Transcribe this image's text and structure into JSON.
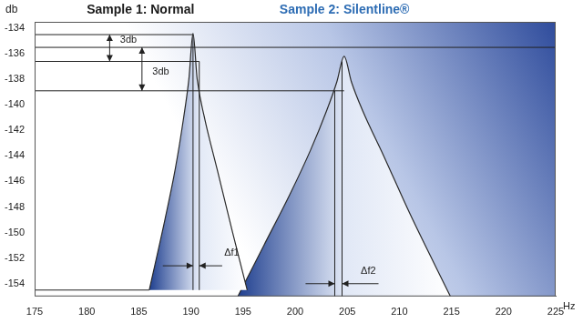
{
  "chart_data": {
    "type": "line",
    "x_label": "Hz",
    "y_label": "db",
    "series": [
      {
        "name": "Sample 1: Normal",
        "color": "#1f3f8f",
        "x": [
          186,
          187.5,
          188.5,
          189.3,
          189.8,
          190.2,
          190.6,
          191.3,
          192.5,
          194,
          195.4
        ],
        "values": [
          -154.5,
          -149,
          -145,
          -141,
          -138,
          -134.4,
          -138,
          -141,
          -145,
          -150,
          -154.5
        ]
      },
      {
        "name": "Sample 2: Silentline®",
        "color": "#1f3f8f",
        "x": [
          194.5,
          197,
          199.5,
          201.5,
          203,
          204,
          204.7,
          205.4,
          206.5,
          208.5,
          211,
          214.9
        ],
        "values": [
          -155,
          -151,
          -147,
          -143.5,
          -140.5,
          -138.2,
          -136.2,
          -138.2,
          -140.5,
          -144,
          -148.5,
          -155
        ]
      }
    ],
    "xlim": [
      175,
      225
    ],
    "xticks": [
      175,
      180,
      185,
      190,
      195,
      200,
      205,
      210,
      215,
      220,
      225
    ],
    "ylim": [
      -155,
      -133.5
    ],
    "yticks": [
      -154,
      -152,
      -150,
      -148,
      -146,
      -144,
      -142,
      -140,
      -138,
      -136,
      -134
    ],
    "grid": false,
    "annotations": {
      "lines": [
        {
          "from": [
            175,
            -154.5
          ],
          "to": [
            186,
            -154.5
          ]
        },
        {
          "from": [
            175,
            -134.5
          ],
          "to": [
            190.2,
            -134.5
          ]
        },
        {
          "from": [
            175,
            -135.5
          ],
          "to": [
            225,
            -135.5
          ]
        },
        {
          "from": [
            175,
            -136.6
          ],
          "to": [
            190.8,
            -136.6
          ]
        },
        {
          "from": [
            175,
            -138.9
          ],
          "to": [
            204.7,
            -138.9
          ]
        },
        {
          "from": [
            190.2,
            -134.5
          ],
          "to": [
            190.2,
            -154.5
          ]
        },
        {
          "from": [
            190.8,
            -136.6
          ],
          "to": [
            190.8,
            -154.5
          ]
        },
        {
          "from": [
            203.8,
            -138.9
          ],
          "to": [
            203.8,
            -155
          ]
        },
        {
          "from": [
            204.5,
            -136.6
          ],
          "to": [
            204.5,
            -155
          ]
        }
      ],
      "double_arrows": [
        {
          "from": [
            182.2,
            -134.5
          ],
          "to": [
            182.2,
            -136.6
          ]
        },
        {
          "from": [
            185.3,
            -135.5
          ],
          "to": [
            185.3,
            -138.9
          ]
        }
      ],
      "arrows": [
        {
          "from": [
            187.3,
            -152.6
          ],
          "to": [
            190.2,
            -152.6
          ]
        },
        {
          "from": [
            193,
            -152.6
          ],
          "to": [
            190.8,
            -152.6
          ]
        },
        {
          "from": [
            201,
            -154
          ],
          "to": [
            203.8,
            -154
          ]
        },
        {
          "from": [
            208,
            -154
          ],
          "to": [
            204.5,
            -154
          ]
        }
      ],
      "labels": [
        {
          "text": "3db",
          "x": 183.2,
          "y": -134.9
        },
        {
          "text": "3db",
          "x": 186.3,
          "y": -137.4
        },
        {
          "text": "Δf1",
          "x": 193.2,
          "y": -151.6
        },
        {
          "text": "Δf2",
          "x": 206.3,
          "y": -153
        }
      ]
    }
  }
}
